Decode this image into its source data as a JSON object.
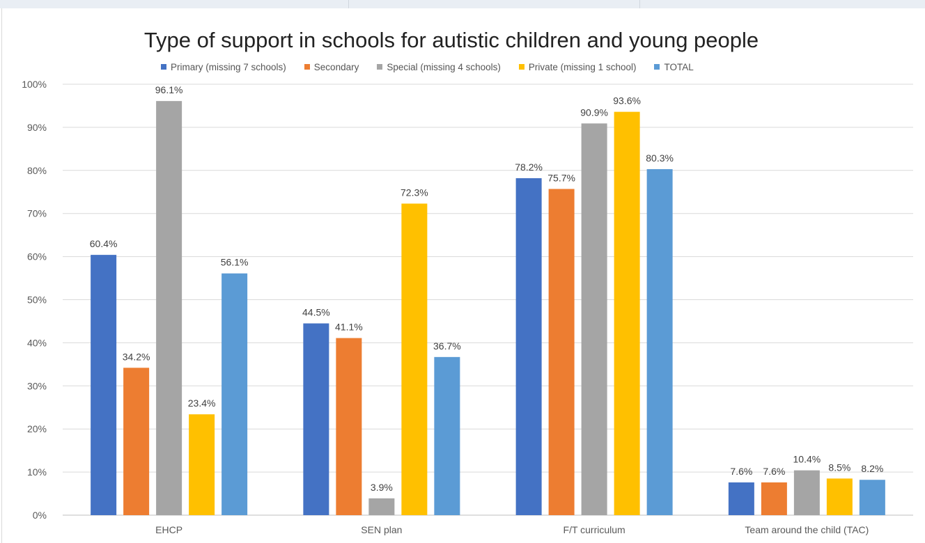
{
  "chart_data": {
    "type": "bar",
    "title": "Type of support in schools for autistic children and young people",
    "categories": [
      "EHCP",
      "SEN plan",
      "F/T curriculum",
      "Team around the child (TAC)"
    ],
    "series": [
      {
        "name": "Primary (missing 7 schools)",
        "color": "#4472C4",
        "values": [
          60.4,
          44.5,
          78.2,
          7.6
        ],
        "labels": [
          "60.4%",
          "44.5%",
          "78.2%",
          "7.6%"
        ]
      },
      {
        "name": "Secondary",
        "color": "#ED7D31",
        "values": [
          34.2,
          41.1,
          75.7,
          7.6
        ],
        "labels": [
          "34.2%",
          "41.1%",
          "75.7%",
          "7.6%"
        ]
      },
      {
        "name": "Special (missing 4 schools)",
        "color": "#A5A5A5",
        "values": [
          96.1,
          3.9,
          90.9,
          10.4
        ],
        "labels": [
          "96.1%",
          "3.9%",
          "90.9%",
          "10.4%"
        ]
      },
      {
        "name": "Private (missing 1 school)",
        "color": "#FFC000",
        "values": [
          23.4,
          72.3,
          93.6,
          8.5
        ],
        "labels": [
          "23.4%",
          "72.3%",
          "93.6%",
          "8.5%"
        ]
      },
      {
        "name": "TOTAL",
        "color": "#5B9BD5",
        "values": [
          56.1,
          36.7,
          80.3,
          8.2
        ],
        "labels": [
          "56.1%",
          "36.7%",
          "80.3%",
          "8.2%"
        ]
      }
    ],
    "y_ticks": [
      "0%",
      "10%",
      "20%",
      "30%",
      "40%",
      "50%",
      "60%",
      "70%",
      "80%",
      "90%",
      "100%"
    ],
    "ylim": [
      0,
      100
    ],
    "grid": true,
    "legend_position": "top"
  }
}
